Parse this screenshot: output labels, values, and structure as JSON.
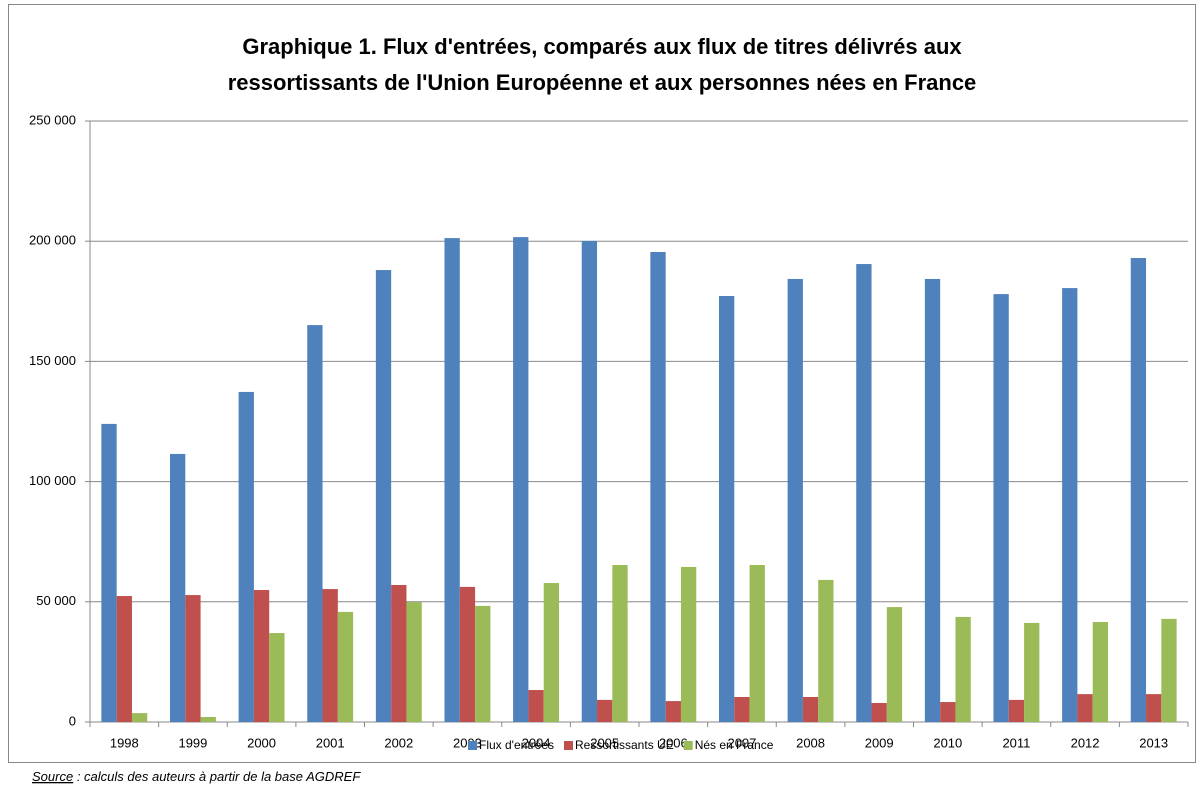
{
  "chart_data": {
    "type": "bar",
    "title": [
      "Graphique 1. Flux d'entrées, comparés aux flux de titres délivrés aux",
      "ressortissants de l'Union Européenne et aux personnes nées en France"
    ],
    "categories": [
      "1998",
      "1999",
      "2000",
      "2001",
      "2002",
      "2003",
      "2004",
      "2005",
      "2006",
      "2007",
      "2008",
      "2009",
      "2010",
      "2011",
      "2012",
      "2013"
    ],
    "series": [
      {
        "name": "Flux d'entrées",
        "color": "#4f81bd",
        "values": [
          124000,
          111500,
          137300,
          165100,
          188000,
          201300,
          201700,
          200100,
          195500,
          177200,
          184300,
          190500,
          184300,
          178000,
          180500,
          193000
        ]
      },
      {
        "name": "Ressortissants UE",
        "color": "#c0504d",
        "values": [
          52400,
          52800,
          54900,
          55300,
          57000,
          56200,
          13300,
          9200,
          8700,
          10400,
          10400,
          7900,
          8300,
          9200,
          11600,
          11600
        ]
      },
      {
        "name": "Nés en France",
        "color": "#9bbb59",
        "values": [
          3700,
          2100,
          37000,
          45800,
          49900,
          48300,
          57800,
          65300,
          64500,
          65300,
          59100,
          47800,
          43700,
          41200,
          41600,
          42900
        ]
      }
    ],
    "ylim": [
      0,
      250000
    ],
    "yticks": [
      0,
      {
        "value": 50000,
        "label": "50 000"
      },
      {
        "value": 100000,
        "label": "100 000"
      },
      {
        "value": 150000,
        "label": "150 000"
      },
      {
        "value": 200000,
        "label": "200 000"
      },
      {
        "value": 250000,
        "label": "250 000"
      }
    ],
    "grid": true,
    "legend": "bottom",
    "source_label": "Source",
    "source_text": " : calculs des auteurs à partir de la base  AGDREF"
  }
}
